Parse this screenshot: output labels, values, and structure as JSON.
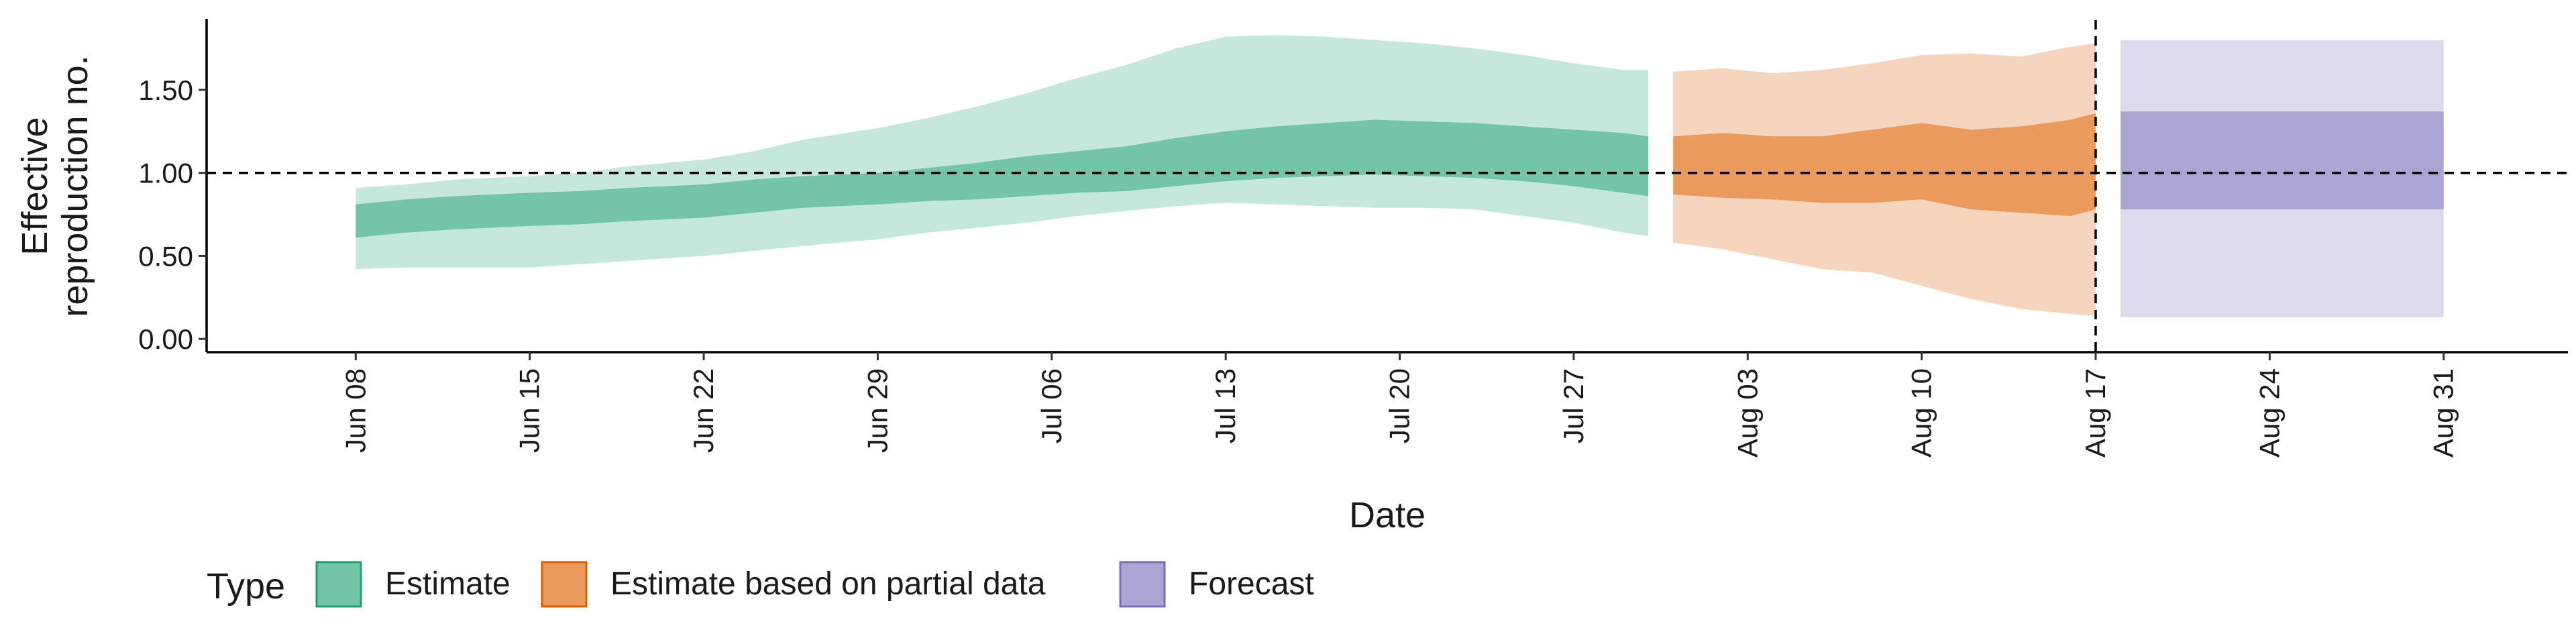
{
  "chart_data": {
    "type": "area",
    "title": "",
    "xlabel": "Date",
    "ylabel": [
      "Effective",
      "reproduction no."
    ],
    "ylim": [
      -0.08,
      1.92
    ],
    "xlim": [
      "2020-06-02",
      "2020-09-05"
    ],
    "x_ticks": [
      {
        "date": "2020-06-08",
        "label": "Jun 08"
      },
      {
        "date": "2020-06-15",
        "label": "Jun 15"
      },
      {
        "date": "2020-06-22",
        "label": "Jun 22"
      },
      {
        "date": "2020-06-29",
        "label": "Jun 29"
      },
      {
        "date": "2020-07-06",
        "label": "Jul 06"
      },
      {
        "date": "2020-07-13",
        "label": "Jul 13"
      },
      {
        "date": "2020-07-20",
        "label": "Jul 20"
      },
      {
        "date": "2020-07-27",
        "label": "Jul 27"
      },
      {
        "date": "2020-08-03",
        "label": "Aug 03"
      },
      {
        "date": "2020-08-10",
        "label": "Aug 10"
      },
      {
        "date": "2020-08-17",
        "label": "Aug 17"
      },
      {
        "date": "2020-08-24",
        "label": "Aug 24"
      },
      {
        "date": "2020-08-31",
        "label": "Aug 31"
      }
    ],
    "y_ticks": [
      {
        "value": 0.0,
        "label": "0.00"
      },
      {
        "value": 0.5,
        "label": "0.50"
      },
      {
        "value": 1.0,
        "label": "1.00"
      },
      {
        "value": 1.5,
        "label": "1.50"
      }
    ],
    "reference_line_y": 1.0,
    "forecast_start_date": "2020-08-17",
    "grid": false,
    "legend": {
      "title": "Type",
      "position": "bottom-left",
      "items": [
        {
          "label": "Estimate",
          "fill": "#74c4a8",
          "border": "#1b9e77"
        },
        {
          "label": "Estimate based on partial data",
          "fill": "#eb9a5e",
          "border": "#d95f02"
        },
        {
          "label": "Forecast",
          "fill": "#a9a5d4",
          "border": "#7570b3"
        }
      ]
    },
    "colors": {
      "estimate_inner": "#74c4a8",
      "estimate_outer": "#c5e7dc",
      "partial_inner": "#eb9a5e",
      "partial_outer": "#f6d5be",
      "forecast_inner": "#a9a5d4",
      "forecast_outer": "#dcdbed"
    },
    "series": [
      {
        "type": "Estimate",
        "x": [
          "2020-06-08",
          "2020-06-10",
          "2020-06-12",
          "2020-06-15",
          "2020-06-17",
          "2020-06-19",
          "2020-06-22",
          "2020-06-24",
          "2020-06-26",
          "2020-06-29",
          "2020-07-01",
          "2020-07-03",
          "2020-07-05",
          "2020-07-07",
          "2020-07-09",
          "2020-07-11",
          "2020-07-13",
          "2020-07-15",
          "2020-07-17",
          "2020-07-19",
          "2020-07-21",
          "2020-07-23",
          "2020-07-25",
          "2020-07-27",
          "2020-07-29",
          "2020-07-30"
        ],
        "outer_upper": [
          0.91,
          0.93,
          0.96,
          0.98,
          1.0,
          1.04,
          1.08,
          1.13,
          1.2,
          1.27,
          1.33,
          1.4,
          1.48,
          1.57,
          1.65,
          1.75,
          1.82,
          1.83,
          1.82,
          1.8,
          1.78,
          1.75,
          1.71,
          1.66,
          1.62,
          1.62
        ],
        "inner_upper": [
          0.81,
          0.84,
          0.86,
          0.88,
          0.89,
          0.91,
          0.93,
          0.96,
          0.98,
          1.0,
          1.03,
          1.06,
          1.1,
          1.13,
          1.16,
          1.21,
          1.25,
          1.28,
          1.3,
          1.32,
          1.31,
          1.3,
          1.28,
          1.26,
          1.24,
          1.22
        ],
        "inner_lower": [
          0.61,
          0.64,
          0.66,
          0.68,
          0.69,
          0.71,
          0.73,
          0.76,
          0.79,
          0.81,
          0.83,
          0.84,
          0.86,
          0.88,
          0.89,
          0.92,
          0.95,
          0.97,
          0.98,
          0.99,
          0.98,
          0.97,
          0.95,
          0.92,
          0.88,
          0.86
        ],
        "outer_lower": [
          0.42,
          0.43,
          0.43,
          0.43,
          0.45,
          0.47,
          0.5,
          0.53,
          0.56,
          0.6,
          0.64,
          0.67,
          0.7,
          0.74,
          0.77,
          0.8,
          0.82,
          0.81,
          0.8,
          0.79,
          0.79,
          0.78,
          0.74,
          0.7,
          0.64,
          0.62
        ]
      },
      {
        "type": "Estimate based on partial data",
        "x": [
          "2020-07-31",
          "2020-08-02",
          "2020-08-04",
          "2020-08-06",
          "2020-08-08",
          "2020-08-10",
          "2020-08-12",
          "2020-08-14",
          "2020-08-16",
          "2020-08-17"
        ],
        "outer_upper": [
          1.61,
          1.63,
          1.6,
          1.62,
          1.66,
          1.71,
          1.72,
          1.7,
          1.76,
          1.78
        ],
        "inner_upper": [
          1.22,
          1.24,
          1.22,
          1.22,
          1.26,
          1.3,
          1.26,
          1.28,
          1.32,
          1.36
        ],
        "inner_lower": [
          0.87,
          0.85,
          0.84,
          0.82,
          0.82,
          0.84,
          0.78,
          0.76,
          0.74,
          0.78
        ],
        "outer_lower": [
          0.58,
          0.54,
          0.48,
          0.42,
          0.4,
          0.32,
          0.24,
          0.18,
          0.15,
          0.14
        ]
      },
      {
        "type": "Forecast",
        "x": [
          "2020-08-18",
          "2020-08-31"
        ],
        "outer_upper": [
          1.8,
          1.8
        ],
        "inner_upper": [
          1.37,
          1.37
        ],
        "inner_lower": [
          0.78,
          0.78
        ],
        "outer_lower": [
          0.13,
          0.13
        ]
      }
    ]
  }
}
